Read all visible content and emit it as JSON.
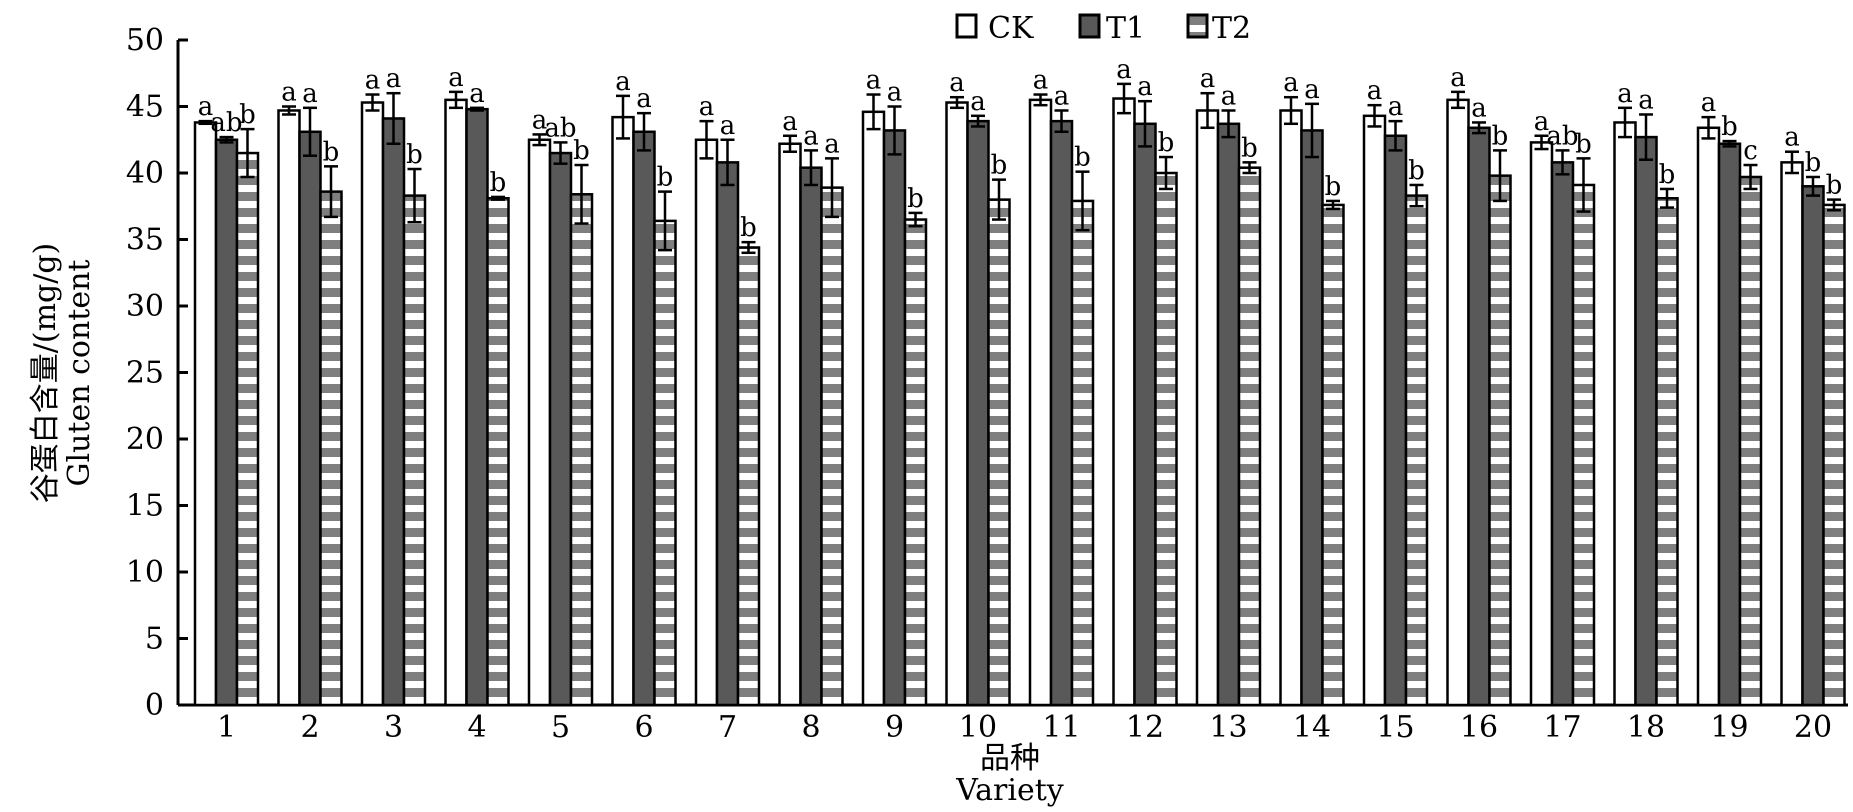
{
  "chart_data": {
    "type": "bar",
    "title": "",
    "xlabel": "品种",
    "xlabel_en": "Variety",
    "ylabel": "谷蛋白含量/(mg/g)",
    "ylabel_en": "Gluten content",
    "ylim": [
      0,
      50
    ],
    "yticks": [
      "0",
      "5",
      "10",
      "15",
      "20",
      "25",
      "30",
      "35",
      "40",
      "45",
      "50"
    ],
    "grid": false,
    "legend_position": "top-center",
    "categories": [
      "1",
      "2",
      "3",
      "4",
      "5",
      "6",
      "7",
      "8",
      "9",
      "10",
      "11",
      "12",
      "13",
      "14",
      "15",
      "16",
      "17",
      "18",
      "19",
      "20"
    ],
    "series": [
      {
        "name": "CK",
        "fill": "#ffffff",
        "pattern": "solid",
        "values": [
          43.8,
          44.7,
          45.3,
          45.5,
          42.5,
          44.2,
          42.5,
          42.2,
          44.6,
          45.3,
          45.5,
          45.6,
          44.7,
          44.7,
          44.3,
          45.5,
          42.3,
          43.8,
          43.4,
          40.8
        ],
        "errors": [
          0.1,
          0.3,
          0.6,
          0.6,
          0.4,
          1.6,
          1.4,
          0.6,
          1.3,
          0.4,
          0.4,
          1.1,
          1.3,
          1.0,
          0.8,
          0.6,
          0.5,
          1.1,
          0.8,
          0.8
        ],
        "letters": [
          "a",
          "a",
          "a",
          "a",
          "a",
          "a",
          "a",
          "a",
          "a",
          "a",
          "a",
          "a",
          "a",
          "a",
          "a",
          "a",
          "a",
          "a",
          "a",
          "a"
        ]
      },
      {
        "name": "T1",
        "fill": "#595959",
        "pattern": "solid",
        "values": [
          42.5,
          43.1,
          44.1,
          44.8,
          41.5,
          43.1,
          40.8,
          40.4,
          43.2,
          43.9,
          43.9,
          43.7,
          43.7,
          43.2,
          42.8,
          43.4,
          40.8,
          42.7,
          42.2,
          39.0
        ],
        "errors": [
          0.2,
          1.8,
          1.9,
          0.1,
          0.8,
          1.4,
          1.7,
          1.3,
          1.8,
          0.4,
          0.8,
          1.7,
          1.0,
          2.0,
          1.1,
          0.4,
          0.9,
          1.7,
          0.2,
          0.7
        ],
        "letters": [
          "ab",
          "a",
          "a",
          "a",
          "ab",
          "a",
          "a",
          "a",
          "a",
          "a",
          "a",
          "a",
          "a",
          "a",
          "a",
          "a",
          "ab",
          "a",
          "b",
          "b"
        ]
      },
      {
        "name": "T2",
        "fill": "#7f7f7f",
        "pattern": "striped",
        "values": [
          41.5,
          38.6,
          38.3,
          38.1,
          38.4,
          36.4,
          34.4,
          38.9,
          36.5,
          38.0,
          37.9,
          40.0,
          40.4,
          37.6,
          38.3,
          39.8,
          39.1,
          38.1,
          39.7,
          37.6
        ],
        "errors": [
          1.8,
          1.9,
          2.0,
          0.1,
          2.2,
          2.2,
          0.4,
          2.2,
          0.5,
          1.5,
          2.2,
          1.2,
          0.4,
          0.3,
          0.8,
          1.9,
          2.0,
          0.7,
          0.9,
          0.4
        ],
        "letters": [
          "b",
          "b",
          "b",
          "b",
          "b",
          "b",
          "b",
          "a",
          "b",
          "b",
          "b",
          "b",
          "b",
          "b",
          "b",
          "b",
          "b",
          "b",
          "c",
          "b"
        ]
      }
    ]
  }
}
